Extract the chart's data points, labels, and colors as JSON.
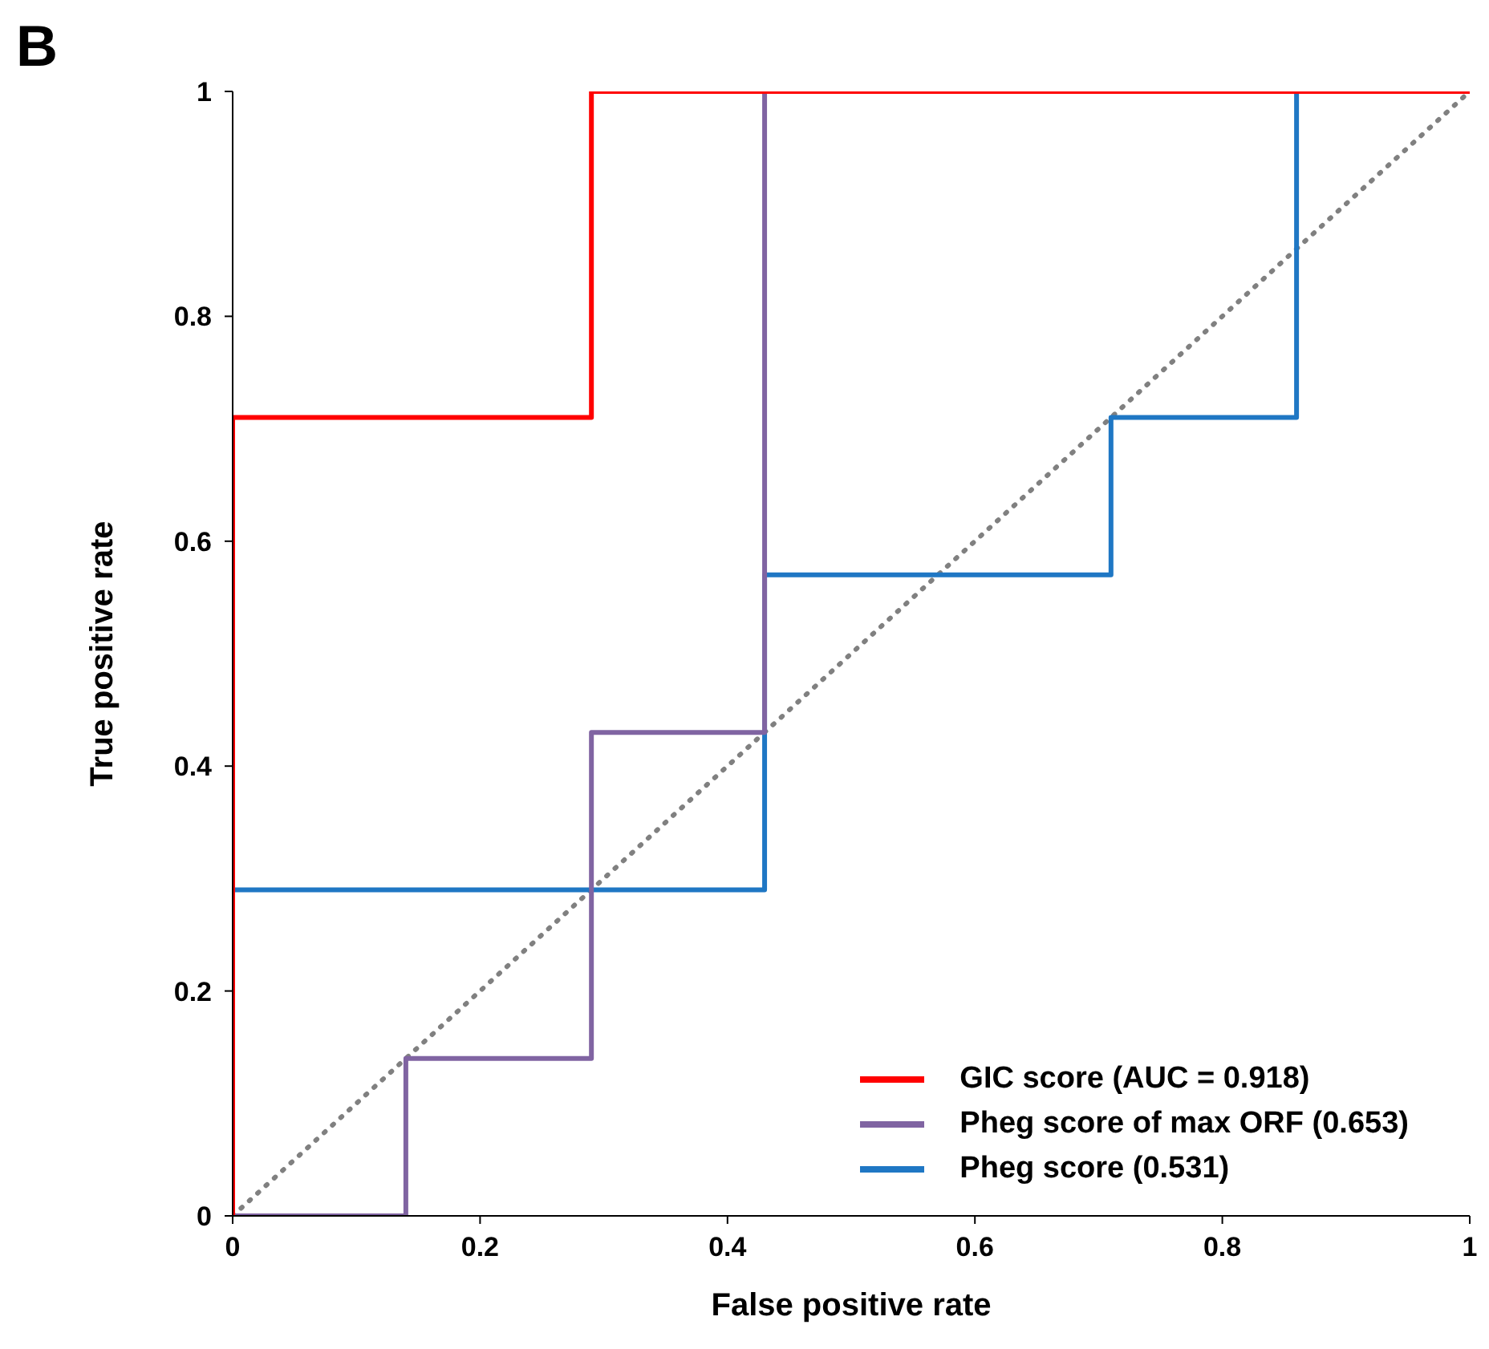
{
  "chart_data": {
    "type": "line",
    "title": "B",
    "xlabel": "False positive rate",
    "ylabel": "True positive rate",
    "xlim": [
      0,
      1
    ],
    "ylim": [
      0,
      1
    ],
    "xticks": [
      0,
      0.2,
      0.4,
      0.6,
      0.8,
      1
    ],
    "yticks": [
      0,
      0.2,
      0.4,
      0.6,
      0.8,
      1
    ],
    "grid": false,
    "legend": "bottom right",
    "marker": "none",
    "line_style": "solid",
    "series": [
      {
        "line_style": "dotted",
        "color": "#808080",
        "x": [
          0,
          1
        ],
        "values": [
          0,
          1
        ]
      },
      {
        "name": "Pheg score (0.531)",
        "color": "#1f77c4",
        "x": [
          0,
          0.43,
          0.43,
          0.71,
          0.71,
          0.86,
          0.86,
          1
        ],
        "values": [
          0.29,
          0.29,
          0.57,
          0.57,
          0.71,
          0.71,
          1,
          1
        ]
      },
      {
        "name": "Pheg score of max ORF (0.653)",
        "color": "#8064a2",
        "x": [
          0,
          0.14,
          0.14,
          0.29,
          0.29,
          0.43,
          0.43,
          1
        ],
        "values": [
          0,
          0,
          0.14,
          0.14,
          0.43,
          0.43,
          1,
          1
        ]
      },
      {
        "name": "GIC score (AUC = 0.918)",
        "color": "#ff0000",
        "x": [
          0,
          0,
          0.29,
          0.29,
          1
        ],
        "values": [
          0,
          0.71,
          0.71,
          1,
          1
        ]
      }
    ]
  }
}
